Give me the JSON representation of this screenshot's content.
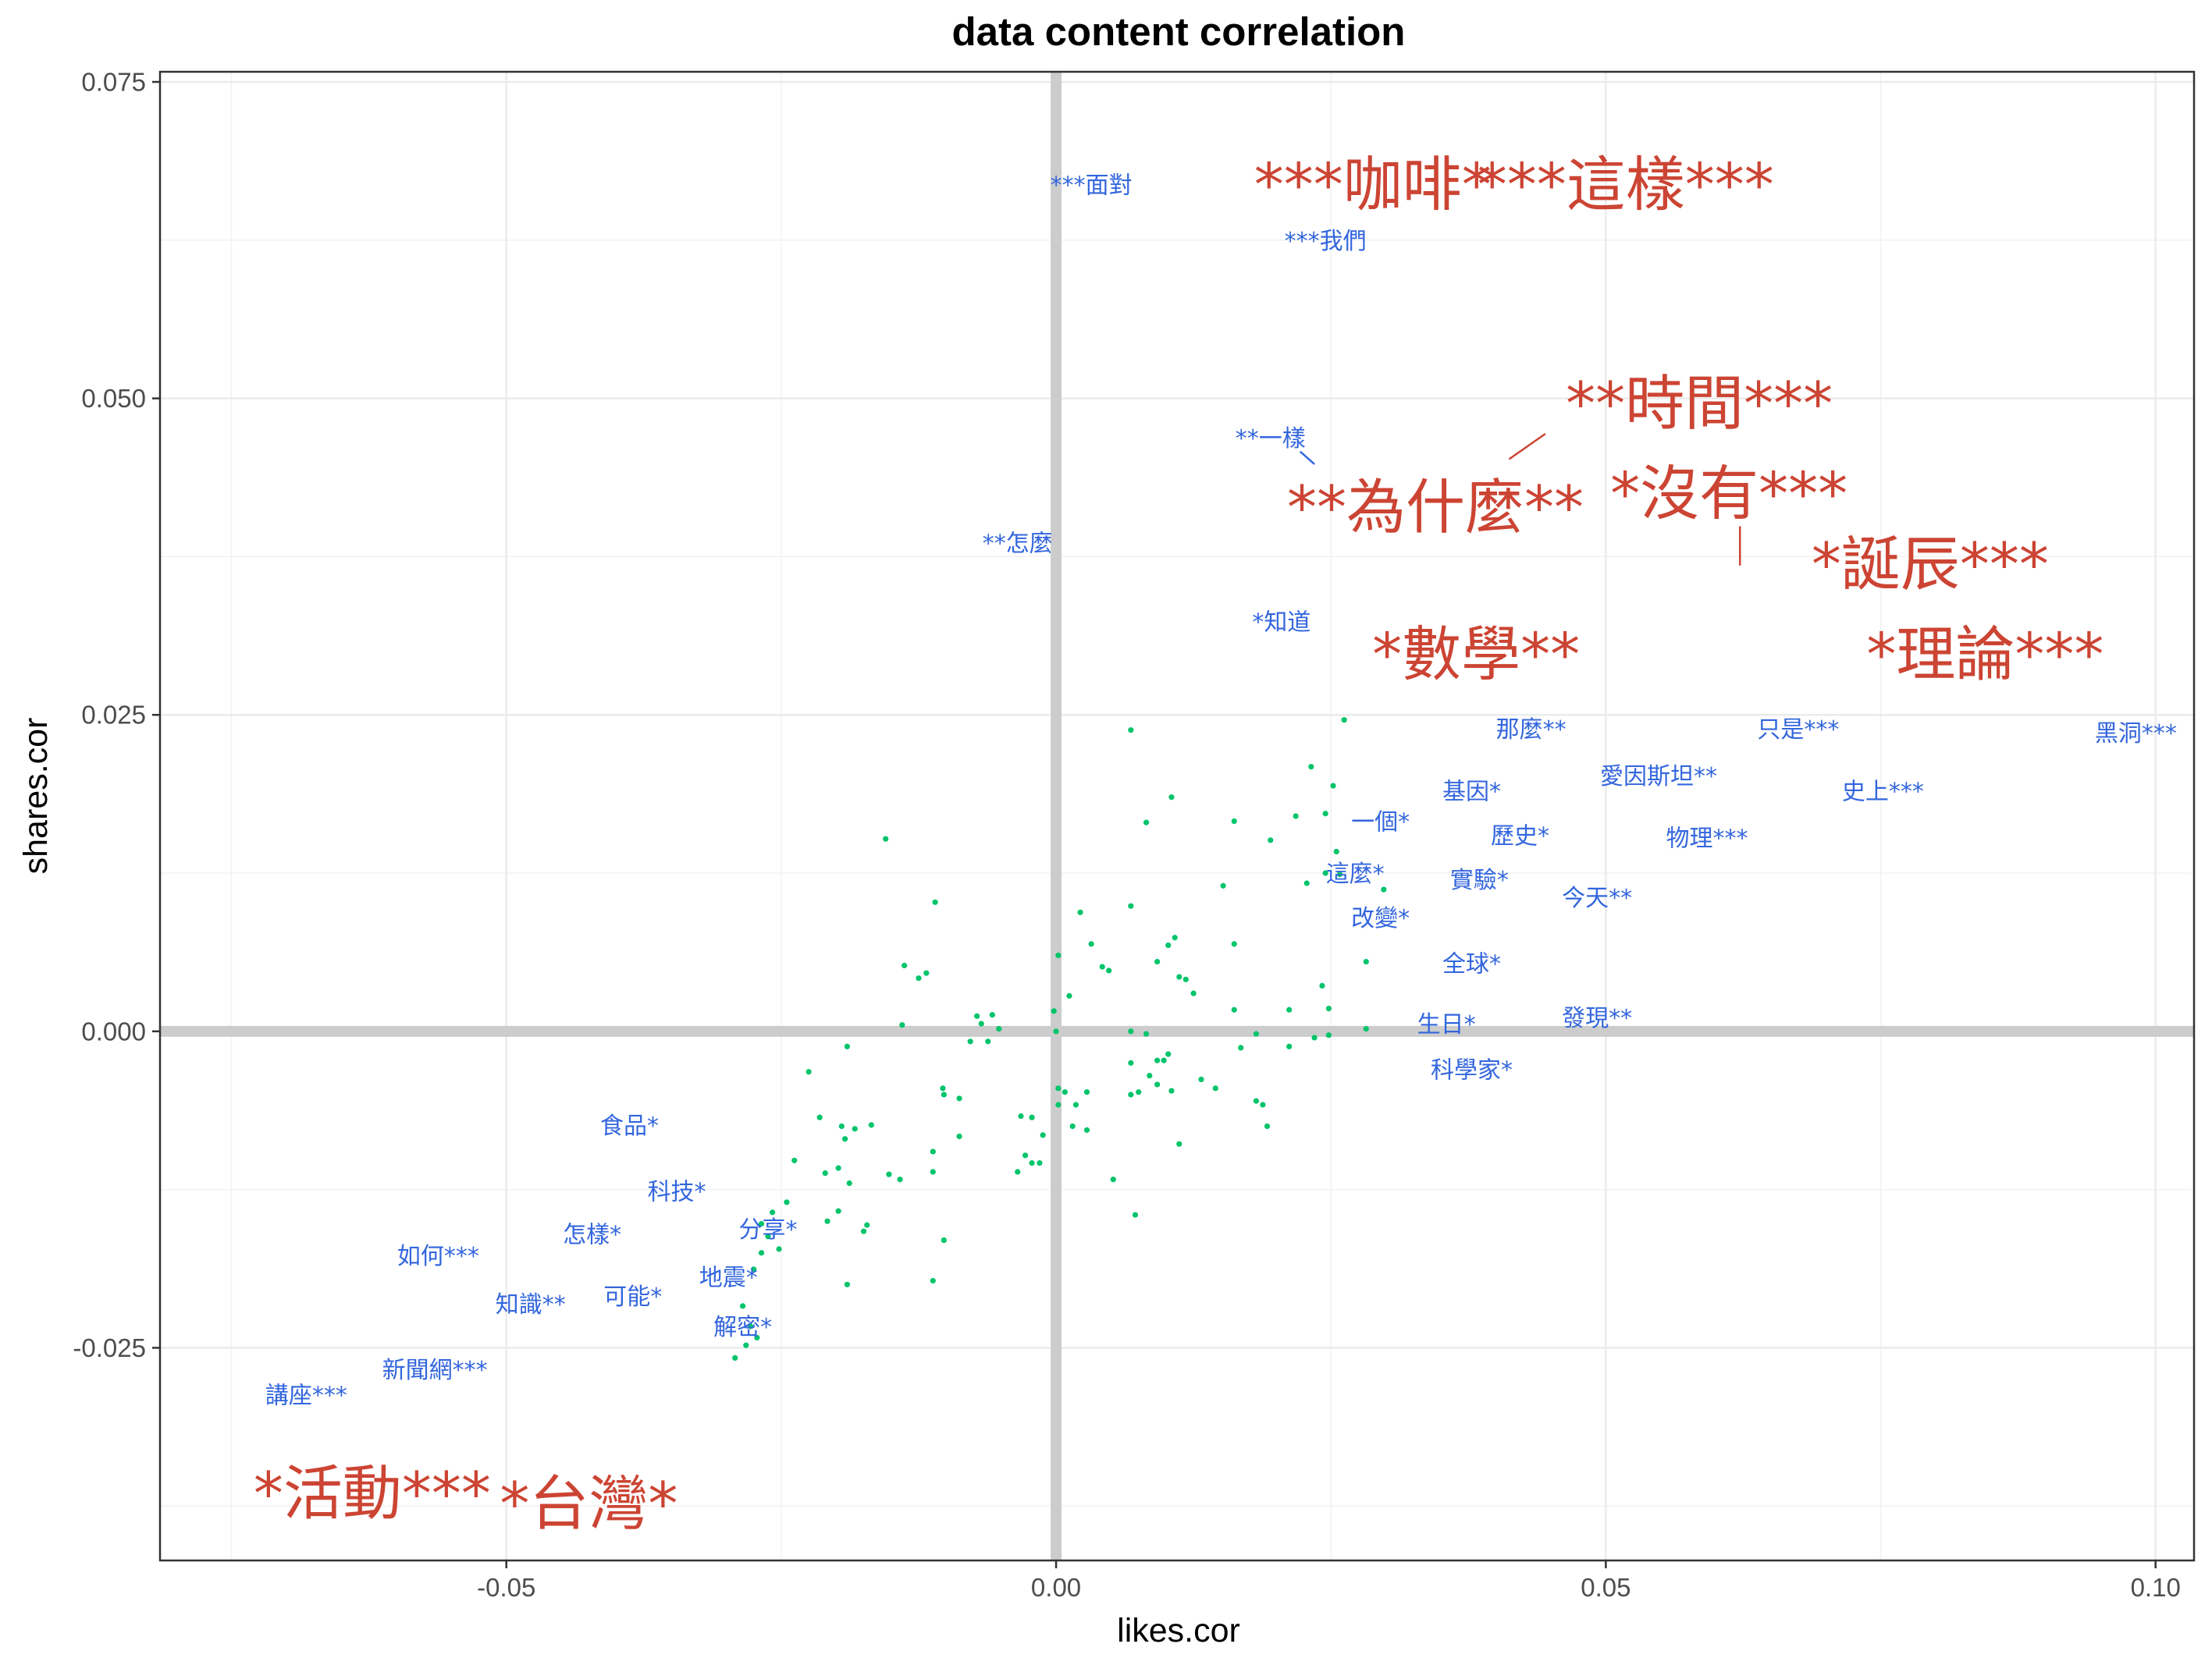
{
  "chart_data": {
    "type": "scatter",
    "title": "data content correlation",
    "xlabel": "likes.cor",
    "ylabel": "shares.cor",
    "xlim": [
      -0.0815,
      0.1035
    ],
    "ylim": [
      -0.0418,
      0.0758
    ],
    "xticks": [
      -0.05,
      0.0,
      0.05,
      0.1
    ],
    "xtick_labels": [
      "-0.05",
      "0.00",
      "0.05",
      "0.10"
    ],
    "yticks": [
      -0.025,
      0.0,
      0.025,
      0.05,
      0.075
    ],
    "ytick_labels": [
      "-0.025",
      "0.000",
      "0.025",
      "0.050",
      "0.075"
    ],
    "grid": true,
    "reference_lines": {
      "x": 0,
      "y": 0
    },
    "colors": {
      "points": "#00c46a",
      "small_labels": "#3366dd",
      "large_labels": "#cc4433",
      "reference": "#cccccc"
    },
    "points": [
      [
        -0.0155,
        0.0152
      ],
      [
        -0.011,
        0.0102
      ],
      [
        -0.0138,
        0.0052
      ],
      [
        -0.0118,
        0.0046
      ],
      [
        -0.0125,
        0.0042
      ],
      [
        -0.014,
        0.0005
      ],
      [
        -0.0225,
        -0.0032
      ],
      [
        -0.019,
        -0.0012
      ],
      [
        -0.0215,
        -0.0068
      ],
      [
        -0.0195,
        -0.0075
      ],
      [
        -0.0183,
        -0.0077
      ],
      [
        -0.0168,
        -0.0074
      ],
      [
        -0.0192,
        -0.0085
      ],
      [
        -0.0238,
        -0.0102
      ],
      [
        -0.0198,
        -0.0108
      ],
      [
        -0.021,
        -0.0112
      ],
      [
        -0.0188,
        -0.012
      ],
      [
        -0.0152,
        -0.0113
      ],
      [
        -0.0142,
        -0.0117
      ],
      [
        -0.0258,
        -0.0143
      ],
      [
        -0.0245,
        -0.0135
      ],
      [
        -0.0268,
        -0.0152
      ],
      [
        -0.0262,
        -0.0162
      ],
      [
        -0.0268,
        -0.0175
      ],
      [
        -0.0252,
        -0.0172
      ],
      [
        -0.0275,
        -0.0188
      ],
      [
        -0.0198,
        -0.0142
      ],
      [
        -0.0175,
        -0.0158
      ],
      [
        -0.0172,
        -0.0153
      ],
      [
        -0.0208,
        -0.015
      ],
      [
        -0.019,
        -0.02
      ],
      [
        -0.0285,
        -0.0217
      ],
      [
        -0.0272,
        -0.0242
      ],
      [
        -0.0282,
        -0.0248
      ],
      [
        -0.0292,
        -0.0258
      ],
      [
        -0.0278,
        -0.0233
      ],
      [
        -0.0112,
        -0.0095
      ],
      [
        -0.0103,
        -0.0045
      ],
      [
        -0.0102,
        -0.005
      ],
      [
        -0.0088,
        -0.0053
      ],
      [
        -0.0112,
        -0.0111
      ],
      [
        -0.0088,
        -0.0083
      ],
      [
        -0.0102,
        -0.0165
      ],
      [
        -0.0112,
        -0.0197
      ],
      [
        -0.0072,
        0.0012
      ],
      [
        -0.0068,
        0.0006
      ],
      [
        -0.0058,
        0.0013
      ],
      [
        -0.0078,
        -0.0008
      ],
      [
        -0.0062,
        -0.0008
      ],
      [
        -0.0052,
        0.0002
      ],
      [
        -0.0032,
        -0.0067
      ],
      [
        -0.0022,
        -0.0068
      ],
      [
        -0.0012,
        -0.0082
      ],
      [
        -0.0028,
        -0.0098
      ],
      [
        -0.0022,
        -0.0104
      ],
      [
        -0.0035,
        -0.0111
      ],
      [
        -0.0015,
        -0.0104
      ],
      [
        0.0002,
        0.006
      ],
      [
        0.0,
        0.0
      ],
      [
        -0.0002,
        0.0016
      ],
      [
        0.0012,
        0.0028
      ],
      [
        0.0002,
        -0.0045
      ],
      [
        0.0008,
        -0.0048
      ],
      [
        0.0002,
        -0.0058
      ],
      [
        0.0018,
        -0.0058
      ],
      [
        0.0028,
        -0.0048
      ],
      [
        0.0015,
        -0.0075
      ],
      [
        0.0028,
        -0.0078
      ],
      [
        0.0022,
        0.0094
      ],
      [
        0.0032,
        0.0069
      ],
      [
        0.0042,
        0.0051
      ],
      [
        0.0048,
        0.0048
      ],
      [
        0.0052,
        -0.0117
      ],
      [
        0.0072,
        -0.0145
      ],
      [
        0.0068,
        0.0238
      ],
      [
        0.0068,
        0.0099
      ],
      [
        0.0082,
        0.0165
      ],
      [
        0.0105,
        0.0185
      ],
      [
        0.0092,
        0.0055
      ],
      [
        0.0102,
        0.0068
      ],
      [
        0.0108,
        0.0074
      ],
      [
        0.0112,
        0.0043
      ],
      [
        0.0118,
        0.0041
      ],
      [
        0.0125,
        0.003
      ],
      [
        0.0068,
        0.0
      ],
      [
        0.0068,
        -0.0025
      ],
      [
        0.0082,
        -0.0002
      ],
      [
        0.0092,
        -0.0023
      ],
      [
        0.0098,
        -0.0023
      ],
      [
        0.0102,
        -0.0018
      ],
      [
        0.0085,
        -0.0035
      ],
      [
        0.0068,
        -0.005
      ],
      [
        0.0075,
        -0.0048
      ],
      [
        0.0092,
        -0.0042
      ],
      [
        0.0105,
        -0.0047
      ],
      [
        0.0112,
        -0.0089
      ],
      [
        0.0132,
        -0.0038
      ],
      [
        0.0145,
        -0.0045
      ],
      [
        0.0162,
        0.0017
      ],
      [
        0.0162,
        0.0069
      ],
      [
        0.0162,
        0.0166
      ],
      [
        0.0152,
        0.0115
      ],
      [
        0.0168,
        -0.0013
      ],
      [
        0.0182,
        -0.0002
      ],
      [
        0.0182,
        -0.0055
      ],
      [
        0.0188,
        -0.0058
      ],
      [
        0.0192,
        -0.0075
      ],
      [
        0.0195,
        0.0151
      ],
      [
        0.0212,
        0.0017
      ],
      [
        0.0212,
        -0.0012
      ],
      [
        0.0218,
        0.017
      ],
      [
        0.0228,
        0.0117
      ],
      [
        0.0232,
        0.0209
      ],
      [
        0.0235,
        -0.0005
      ],
      [
        0.0242,
        0.0036
      ],
      [
        0.0245,
        0.0172
      ],
      [
        0.0245,
        0.0125
      ],
      [
        0.0248,
        -0.0003
      ],
      [
        0.0248,
        0.0018
      ],
      [
        0.0252,
        0.0194
      ],
      [
        0.0255,
        0.0142
      ],
      [
        0.0258,
        0.0124
      ],
      [
        0.0262,
        0.0246
      ],
      [
        0.0282,
        0.0055
      ],
      [
        0.0282,
        0.0002
      ],
      [
        0.0298,
        0.0112
      ]
    ],
    "small_labels": [
      {
        "text": "***面對",
        "x": 0.0032,
        "y": 0.0668
      },
      {
        "text": "***我們",
        "x": 0.0245,
        "y": 0.0624
      },
      {
        "text": "**一樣",
        "x": 0.0195,
        "y": 0.0468
      },
      {
        "text": "**怎麼",
        "x": -0.0035,
        "y": 0.0385
      },
      {
        "text": "*知道",
        "x": 0.0205,
        "y": 0.0323
      },
      {
        "text": "那麼**",
        "x": 0.0432,
        "y": 0.0238
      },
      {
        "text": "只是***",
        "x": 0.0675,
        "y": 0.0238
      },
      {
        "text": "黑洞***",
        "x": 0.0982,
        "y": 0.0235
      },
      {
        "text": "愛因斯坦**",
        "x": 0.0548,
        "y": 0.0201
      },
      {
        "text": "基因*",
        "x": 0.0378,
        "y": 0.0189
      },
      {
        "text": "史上***",
        "x": 0.0752,
        "y": 0.0189
      },
      {
        "text": "一個*",
        "x": 0.0295,
        "y": 0.0165
      },
      {
        "text": "歷史*",
        "x": 0.0422,
        "y": 0.0154
      },
      {
        "text": "物理***",
        "x": 0.0592,
        "y": 0.0152
      },
      {
        "text": "這麼*",
        "x": 0.0272,
        "y": 0.0124
      },
      {
        "text": "實驗*",
        "x": 0.0385,
        "y": 0.0119
      },
      {
        "text": "今天**",
        "x": 0.0492,
        "y": 0.0105
      },
      {
        "text": "改變*",
        "x": 0.0295,
        "y": 0.0089
      },
      {
        "text": "全球*",
        "x": 0.0378,
        "y": 0.0053
      },
      {
        "text": "發現**",
        "x": 0.0492,
        "y": 0.001
      },
      {
        "text": "生日*",
        "x": 0.0355,
        "y": 0.0005
      },
      {
        "text": "科學家*",
        "x": 0.0378,
        "y": -0.0031
      },
      {
        "text": "食品*",
        "x": -0.0388,
        "y": -0.0075
      },
      {
        "text": "科技*",
        "x": -0.0345,
        "y": -0.0127
      },
      {
        "text": "怎樣*",
        "x": -0.0422,
        "y": -0.0161
      },
      {
        "text": "分享*",
        "x": -0.0262,
        "y": -0.0157
      },
      {
        "text": "如何***",
        "x": -0.0562,
        "y": -0.0178
      },
      {
        "text": "地震*",
        "x": -0.0298,
        "y": -0.0195
      },
      {
        "text": "可能*",
        "x": -0.0385,
        "y": -0.021
      },
      {
        "text": "知識**",
        "x": -0.0478,
        "y": -0.0216
      },
      {
        "text": "解密*",
        "x": -0.0285,
        "y": -0.0234
      },
      {
        "text": "新聞網***",
        "x": -0.0565,
        "y": -0.0268
      },
      {
        "text": "講座***",
        "x": -0.0682,
        "y": -0.0288
      }
    ],
    "large_labels": [
      {
        "text": "***咖啡*",
        "x": 0.0288,
        "y": 0.0669
      },
      {
        "text": "***這樣***",
        "x": 0.0518,
        "y": 0.0669
      },
      {
        "text": "**時間***",
        "x": 0.0585,
        "y": 0.0496
      },
      {
        "text": "**為什麼**",
        "x": 0.0345,
        "y": 0.0414
      },
      {
        "text": "*沒有***",
        "x": 0.0612,
        "y": 0.0425
      },
      {
        "text": "*誕辰***",
        "x": 0.0795,
        "y": 0.0369
      },
      {
        "text": "*數學**",
        "x": 0.0382,
        "y": 0.0298
      },
      {
        "text": "*理論***",
        "x": 0.0845,
        "y": 0.0298
      },
      {
        "text": "*活動***",
        "x": -0.0622,
        "y": -0.0365
      },
      {
        "text": "*台灣*",
        "x": -0.0425,
        "y": -0.0373
      }
    ],
    "leader_lines": [
      {
        "x1": 0.0235,
        "y1": 0.0448,
        "x2": 0.0222,
        "y2": 0.0458
      },
      {
        "x1": 0.0412,
        "y1": 0.0452,
        "x2": 0.0445,
        "y2": 0.0472
      },
      {
        "x1": 0.0622,
        "y1": 0.0368,
        "x2": 0.0622,
        "y2": 0.0399
      }
    ]
  }
}
